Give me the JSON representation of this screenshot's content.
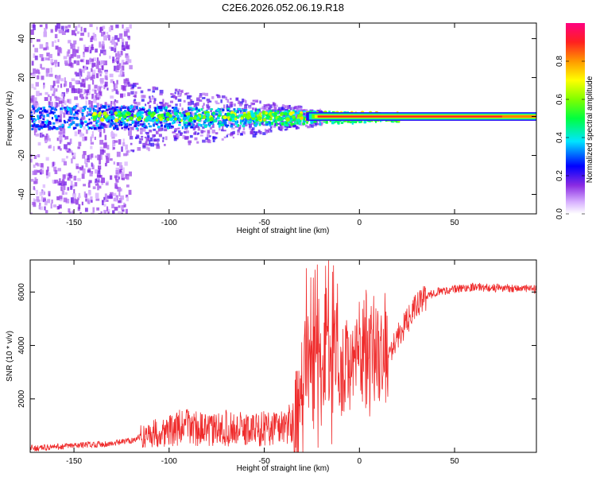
{
  "title": "C2E6.2026.052.06.19.R18",
  "colors": {
    "snr_line": "#ef2b2b",
    "background": "#ffffff",
    "axis": "#000000"
  },
  "chart_data": [
    {
      "type": "heatmap",
      "title": "C2E6.2026.052.06.19.R18",
      "xlabel": "Height of straight line (km)",
      "ylabel": "Frequency (Hz)",
      "xlim": [
        -173,
        93
      ],
      "ylim": [
        -50,
        48
      ],
      "xticks": [
        -150,
        -100,
        -50,
        0,
        50
      ],
      "yticks": [
        -40,
        -20,
        0,
        20,
        40
      ],
      "colorbar": {
        "label": "Normalized spectral amplitude",
        "range": [
          0,
          1
        ],
        "ticks": [
          0.0,
          0.2,
          0.4,
          0.6,
          0.8
        ],
        "tick_labels": [
          "0.0",
          "0.2",
          "0.4",
          "0.6",
          "0.8"
        ]
      },
      "description_points": [
        {
          "x_range": [
            -173,
            -122
          ],
          "freq_spread": 48,
          "amplitude": 0.12
        },
        {
          "x_range": [
            -122,
            -20
          ],
          "freq_spread": 8,
          "amplitude": 0.35
        },
        {
          "x_range": [
            -20,
            93
          ],
          "freq_spread": 2,
          "amplitude": 0.9
        }
      ]
    },
    {
      "type": "line",
      "xlabel": "Height of straight line (km)",
      "ylabel": "SNR (10 * v/v)",
      "xlim": [
        -173,
        93
      ],
      "ylim": [
        0,
        7200
      ],
      "xticks": [
        -150,
        -100,
        -50,
        0,
        50
      ],
      "yticks": [
        2000,
        4000,
        6000
      ],
      "series": [
        {
          "name": "SNR",
          "x": [
            -173,
            -160,
            -150,
            -140,
            -130,
            -120,
            -110,
            -100,
            -90,
            -80,
            -70,
            -60,
            -50,
            -40,
            -33,
            -30,
            -27,
            -25,
            -22,
            -20,
            -17,
            -15,
            -12,
            -10,
            -5,
            0,
            5,
            10,
            15,
            20,
            25,
            30,
            35,
            40,
            50,
            60,
            70,
            80,
            93
          ],
          "values": [
            150,
            200,
            250,
            300,
            320,
            450,
            700,
            800,
            1000,
            800,
            900,
            850,
            900,
            1000,
            1100,
            1900,
            3500,
            2600,
            3800,
            2800,
            4700,
            2500,
            4300,
            3000,
            3400,
            3800,
            3700,
            4000,
            3700,
            4300,
            4900,
            5500,
            5800,
            6000,
            6100,
            6200,
            6150,
            6150,
            6100
          ]
        }
      ]
    }
  ]
}
